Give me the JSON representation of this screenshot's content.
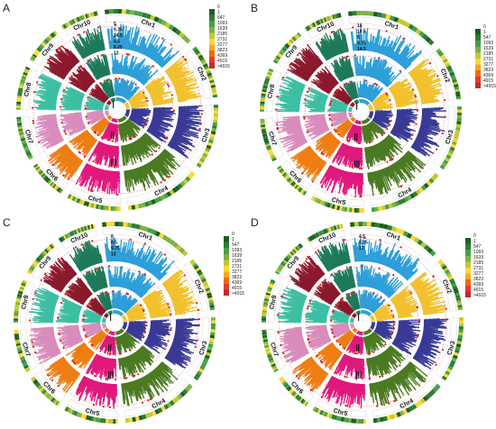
{
  "panels": [
    {
      "label": "A"
    },
    {
      "label": "B"
    },
    {
      "label": "C"
    },
    {
      "label": "D"
    }
  ],
  "chromosomes": [
    {
      "name": "Chr1",
      "color": "#2e9fd8"
    },
    {
      "name": "Chr2",
      "color": "#f2c12e"
    },
    {
      "name": "Chr3",
      "color": "#3a3a96"
    },
    {
      "name": "Chr4",
      "color": "#4b7a22"
    },
    {
      "name": "Chr5",
      "color": "#e0197d"
    },
    {
      "name": "Chr6",
      "color": "#ee7e14"
    },
    {
      "name": "Chr7",
      "color": "#d98dbc"
    },
    {
      "name": "Chr8",
      "color": "#3dbfa2"
    },
    {
      "name": "Chr9",
      "color": "#8b1a2c"
    },
    {
      "name": "Chr10",
      "color": "#1e7a5a"
    }
  ],
  "rings": [
    "Ⅰ",
    "Ⅱ",
    "Ⅲ"
  ],
  "legend": {
    "ticks": [
      "0",
      "1",
      "547",
      "1093",
      "1639",
      "2185",
      "2731",
      "3277",
      "3823",
      "4369",
      "4915",
      ">4915"
    ],
    "colors": [
      "#1b5e20",
      "#2e7d32",
      "#43a047",
      "#7cb342",
      "#c0ca33",
      "#fdd835",
      "#f9a825",
      "#ef6c00",
      "#e53935",
      "#c62828"
    ]
  },
  "scale_labels": {
    "A": [
      "5",
      "9.75",
      "14.5",
      "4.5",
      "8.25",
      "12"
    ],
    "B": [
      "16",
      "10.5",
      "5",
      "9.75",
      "14.5"
    ],
    "C": [
      "8",
      "6.5",
      "9.75",
      "13"
    ],
    "D": [
      "4.5",
      "8.25",
      "12"
    ]
  }
}
